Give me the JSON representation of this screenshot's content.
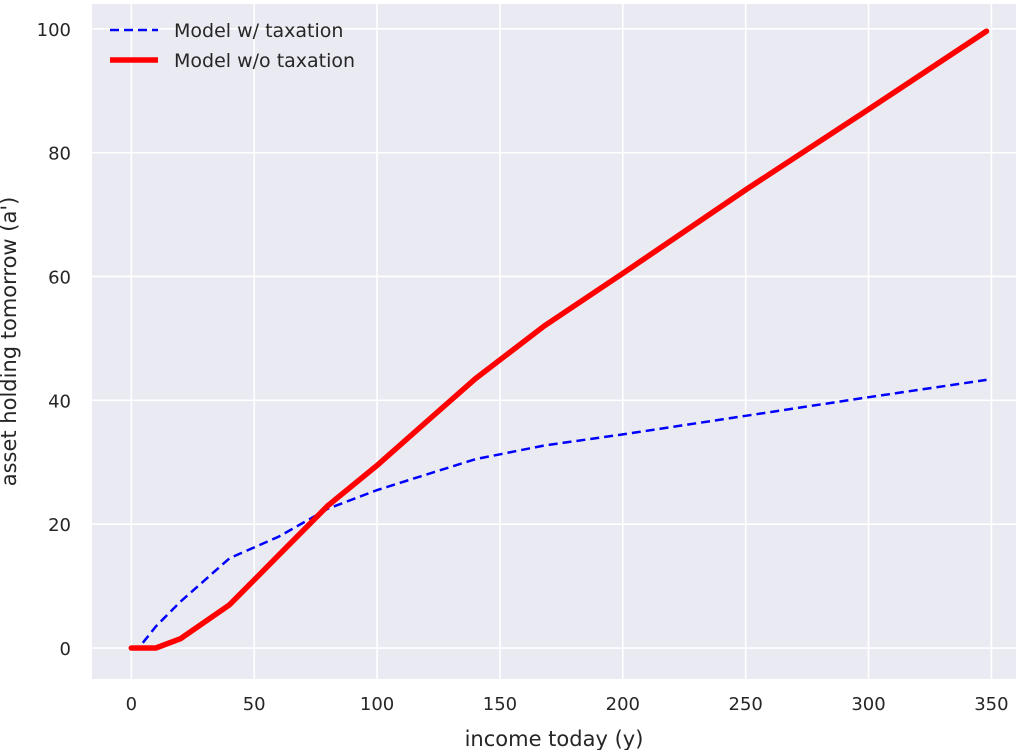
{
  "chart_data": {
    "type": "line",
    "title": "",
    "xlabel": "income today (y)",
    "ylabel": "asset holding tomorrow (a')",
    "xlim": [
      -16,
      360
    ],
    "ylim": [
      -5,
      104
    ],
    "xticks": [
      0,
      50,
      100,
      150,
      200,
      250,
      300,
      350
    ],
    "yticks": [
      0,
      20,
      40,
      60,
      80,
      100
    ],
    "xtick_labels": [
      "0",
      "50",
      "100",
      "150",
      "200",
      "250",
      "300",
      "350"
    ],
    "ytick_labels": [
      "0",
      "20",
      "40",
      "60",
      "80",
      "100"
    ],
    "grid": true,
    "legend_position": "top-left",
    "background_color": "#eaeaf2",
    "grid_color": "#ffffff",
    "series": [
      {
        "name": "Model w/ taxation",
        "color": "#0000ff",
        "style": "dashed",
        "x": [
          0,
          3,
          10,
          20,
          40,
          60,
          80,
          100,
          120,
          140,
          168,
          200,
          250,
          300,
          348
        ],
        "y": [
          0,
          0,
          3.5,
          7.5,
          14.5,
          18,
          22.5,
          25.5,
          28,
          30.5,
          32.7,
          34.5,
          37.5,
          40.5,
          43.3
        ]
      },
      {
        "name": "Model w/o taxation",
        "color": "#ff0000",
        "style": "solid",
        "x": [
          0,
          10,
          20,
          40,
          60,
          80,
          100,
          120,
          140,
          168,
          200,
          250,
          300,
          348
        ],
        "y": [
          0,
          0,
          1.5,
          7,
          15,
          23,
          29.5,
          36.5,
          43.5,
          52,
          60.5,
          74,
          87,
          99.6
        ]
      }
    ]
  }
}
